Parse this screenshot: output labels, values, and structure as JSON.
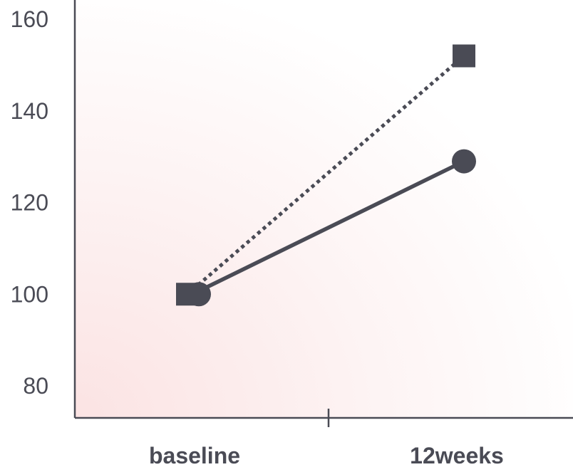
{
  "chart_data": {
    "type": "line",
    "title": "",
    "xlabel": "",
    "ylabel": "",
    "categories": [
      "baseline",
      "12weeks"
    ],
    "ylim": [
      80,
      160
    ],
    "yticks": [
      "80",
      "100",
      "120",
      "140",
      "160"
    ],
    "grid": false,
    "series": [
      {
        "marker": "circle",
        "line_style": "solid",
        "values": [
          100,
          129
        ]
      },
      {
        "marker": "square",
        "line_style": "dotted",
        "values": [
          100,
          152
        ]
      }
    ]
  },
  "colors": {
    "ink": "#4a4b55",
    "background_tint": "#fbe3e3"
  }
}
